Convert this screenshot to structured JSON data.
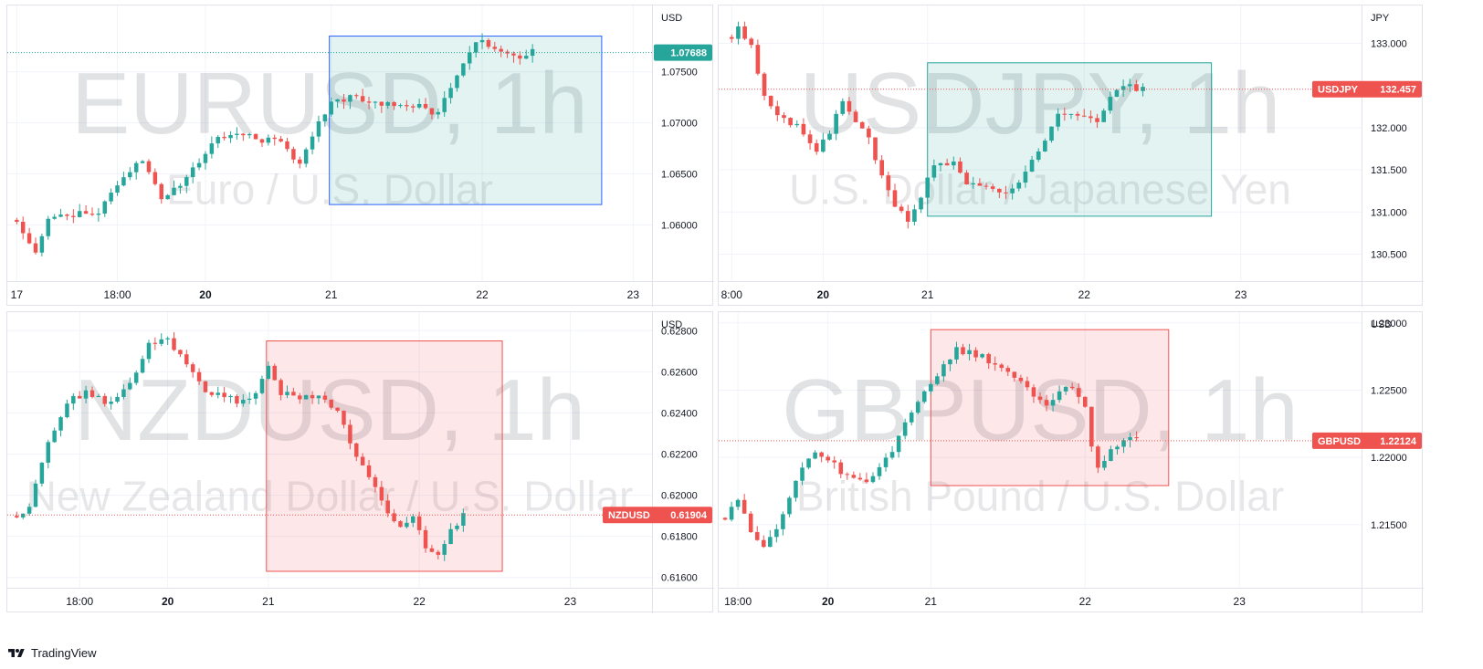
{
  "app": {
    "brand": "TradingView"
  },
  "charts": [
    {
      "id": "eurusd",
      "watermark_symbol": "EURUSD, 1h",
      "watermark_desc": "Euro / U.S. Dollar",
      "currency": "USD",
      "price_label": "1.07688",
      "price_label_symbol": "",
      "price_color": "#26a69a",
      "current_price": 1.07688,
      "y_ticks": [
        "1.06000",
        "1.06500",
        "1.07000",
        "1.07500"
      ],
      "y_tick_values": [
        1.06,
        1.065,
        1.07,
        1.075
      ],
      "ylim": [
        1.0545,
        1.0815
      ],
      "x_ticks": [
        {
          "label": "17",
          "t": 0,
          "bold": false
        },
        {
          "label": "18:00",
          "t": 16,
          "bold": false
        },
        {
          "label": "20",
          "t": 30,
          "bold": true
        },
        {
          "label": "21",
          "t": 50,
          "bold": false
        },
        {
          "label": "22",
          "t": 74,
          "bold": false
        },
        {
          "label": "23",
          "t": 98,
          "bold": false
        }
      ],
      "xlim": [
        -1.5,
        101
      ],
      "box": {
        "x0": 49.7,
        "x1": 93,
        "y0": 1.0785,
        "y1": 1.062,
        "fill": "rgba(38,166,154,0.13)",
        "stroke": "#2962ff"
      },
      "seed": 11,
      "keypoints": [
        [
          0,
          1.0605
        ],
        [
          3,
          1.0575
        ],
        [
          5,
          1.0605
        ],
        [
          9,
          1.0612
        ],
        [
          13,
          1.0612
        ],
        [
          17,
          1.065
        ],
        [
          20,
          1.0665
        ],
        [
          23,
          1.0625
        ],
        [
          26,
          1.064
        ],
        [
          31,
          1.068
        ],
        [
          34,
          1.069
        ],
        [
          38,
          1.0685
        ],
        [
          42,
          1.068
        ],
        [
          45,
          1.066
        ],
        [
          48,
          1.07
        ],
        [
          50,
          1.072
        ],
        [
          53,
          1.0725
        ],
        [
          57,
          1.072
        ],
        [
          61,
          1.072
        ],
        [
          64,
          1.0715
        ],
        [
          67,
          1.071
        ],
        [
          69,
          1.0735
        ],
        [
          71,
          1.0755
        ],
        [
          73,
          1.078
        ],
        [
          75,
          1.0775
        ],
        [
          79,
          1.0765
        ],
        [
          82,
          1.0769
        ]
      ],
      "n_candles": 83,
      "volatility": 0.0008
    },
    {
      "id": "usdjpy",
      "watermark_symbol": "USDJPY, 1h",
      "watermark_desc": "U.S. Dollar / Japanese Yen",
      "currency": "JPY",
      "price_label": "132.457",
      "price_label_symbol": "USDJPY",
      "price_color": "#ef5350",
      "current_price": 132.457,
      "y_ticks": [
        "130.500",
        "131.000",
        "131.500",
        "132.000",
        "133.000"
      ],
      "y_tick_values": [
        130.5,
        131.0,
        131.5,
        132.0,
        133.0
      ],
      "ylim": [
        130.18,
        133.45
      ],
      "x_ticks": [
        {
          "label": "8:00",
          "t": 0,
          "bold": false
        },
        {
          "label": "20",
          "t": 14,
          "bold": true
        },
        {
          "label": "21",
          "t": 30,
          "bold": false
        },
        {
          "label": "22",
          "t": 54,
          "bold": false
        },
        {
          "label": "23",
          "t": 78,
          "bold": false
        }
      ],
      "xlim": [
        -2,
        96.5
      ],
      "box": {
        "x0": 30,
        "x1": 73.5,
        "y0": 132.77,
        "y1": 130.95,
        "fill": "rgba(38,166,154,0.13)",
        "stroke": "#26a69a"
      },
      "seed": 23,
      "keypoints": [
        [
          -1,
          132.95
        ],
        [
          1,
          133.2
        ],
        [
          3,
          132.95
        ],
        [
          5,
          132.4
        ],
        [
          7,
          132.15
        ],
        [
          9,
          132.05
        ],
        [
          11,
          131.95
        ],
        [
          13,
          131.75
        ],
        [
          15,
          131.95
        ],
        [
          17,
          132.35
        ],
        [
          19,
          132.1
        ],
        [
          21,
          131.85
        ],
        [
          23,
          131.45
        ],
        [
          25,
          131.05
        ],
        [
          27,
          130.9
        ],
        [
          29,
          131.2
        ],
        [
          31,
          131.55
        ],
        [
          34,
          131.6
        ],
        [
          36,
          131.35
        ],
        [
          38,
          131.3
        ],
        [
          40,
          131.25
        ],
        [
          42,
          131.2
        ],
        [
          44,
          131.35
        ],
        [
          46,
          131.6
        ],
        [
          48,
          131.85
        ],
        [
          50,
          132.15
        ],
        [
          52,
          132.2
        ],
        [
          54,
          132.15
        ],
        [
          56,
          132.1
        ],
        [
          58,
          132.35
        ],
        [
          60,
          132.5
        ],
        [
          62,
          132.46
        ]
      ],
      "n_candles": 64,
      "volatility": 0.09
    },
    {
      "id": "nzdusd",
      "watermark_symbol": "NZDUSD, 1h",
      "watermark_desc": "New Zealand Dollar / U.S. Dollar",
      "currency": "USD",
      "price_label": "0.61904",
      "price_label_symbol": "NZDUSD",
      "price_color": "#ef5350",
      "current_price": 0.61904,
      "y_ticks": [
        "0.61600",
        "0.61800",
        "0.62000",
        "0.62200",
        "0.62400",
        "0.62600",
        "0.62800"
      ],
      "y_tick_values": [
        0.616,
        0.618,
        0.62,
        0.622,
        0.624,
        0.626,
        0.628
      ],
      "ylim": [
        0.6155,
        0.6289
      ],
      "x_ticks": [
        {
          "label": "18:00",
          "t": 10,
          "bold": false
        },
        {
          "label": "20",
          "t": 24,
          "bold": true
        },
        {
          "label": "21",
          "t": 40,
          "bold": false
        },
        {
          "label": "22",
          "t": 64,
          "bold": false
        },
        {
          "label": "23",
          "t": 88,
          "bold": false
        }
      ],
      "xlim": [
        -1.5,
        101
      ],
      "box": {
        "x0": 39.7,
        "x1": 77.2,
        "y0": 0.6275,
        "y1": 0.6163,
        "fill": "rgba(242,54,69,0.12)",
        "stroke": "#ef5350"
      },
      "seed": 37,
      "keypoints": [
        [
          0,
          0.619
        ],
        [
          2,
          0.6195
        ],
        [
          5,
          0.6225
        ],
        [
          8,
          0.6245
        ],
        [
          11,
          0.625
        ],
        [
          14,
          0.6245
        ],
        [
          17,
          0.625
        ],
        [
          19,
          0.626
        ],
        [
          21,
          0.6275
        ],
        [
          24,
          0.6275
        ],
        [
          27,
          0.6265
        ],
        [
          30,
          0.625
        ],
        [
          33,
          0.6248
        ],
        [
          36,
          0.6245
        ],
        [
          38,
          0.625
        ],
        [
          40,
          0.6262
        ],
        [
          42,
          0.625
        ],
        [
          45,
          0.6248
        ],
        [
          48,
          0.6248
        ],
        [
          51,
          0.624
        ],
        [
          54,
          0.6218
        ],
        [
          57,
          0.6205
        ],
        [
          59,
          0.6192
        ],
        [
          61,
          0.6185
        ],
        [
          63,
          0.619
        ],
        [
          65,
          0.6175
        ],
        [
          67,
          0.617
        ],
        [
          69,
          0.6182
        ],
        [
          71,
          0.619
        ]
      ],
      "n_candles": 72,
      "volatility": 0.00035
    },
    {
      "id": "gbpusd",
      "watermark_symbol": "GBPUSD, 1h",
      "watermark_desc": "British Pound / U.S. Dollar",
      "currency": "USD",
      "price_label": "1.22124",
      "price_label_symbol": "GBPUSD",
      "price_color": "#ef5350",
      "current_price": 1.22124,
      "y_ticks": [
        "1.21500",
        "1.22000",
        "1.22500",
        "1.23000"
      ],
      "y_tick_values": [
        1.215,
        1.22,
        1.225,
        1.23
      ],
      "ylim": [
        1.2103,
        1.2308
      ],
      "x_ticks": [
        {
          "label": "18:00",
          "t": 2,
          "bold": false
        },
        {
          "label": "20",
          "t": 16,
          "bold": true
        },
        {
          "label": "21",
          "t": 32,
          "bold": false
        },
        {
          "label": "22",
          "t": 56,
          "bold": false
        },
        {
          "label": "23",
          "t": 80,
          "bold": false
        }
      ],
      "xlim": [
        -1,
        99
      ],
      "box": {
        "x0": 32,
        "x1": 69,
        "y0": 1.2295,
        "y1": 1.2179,
        "fill": "rgba(242,54,69,0.12)",
        "stroke": "#ef5350"
      },
      "seed": 53,
      "keypoints": [
        [
          0,
          1.2155
        ],
        [
          2,
          1.217
        ],
        [
          4,
          1.2145
        ],
        [
          6,
          1.2135
        ],
        [
          8,
          1.2148
        ],
        [
          10,
          1.217
        ],
        [
          12,
          1.2195
        ],
        [
          14,
          1.2205
        ],
        [
          16,
          1.22
        ],
        [
          18,
          1.219
        ],
        [
          20,
          1.2185
        ],
        [
          22,
          1.218
        ],
        [
          24,
          1.219
        ],
        [
          26,
          1.2205
        ],
        [
          28,
          1.2225
        ],
        [
          30,
          1.224
        ],
        [
          32,
          1.2255
        ],
        [
          34,
          1.227
        ],
        [
          36,
          1.228
        ],
        [
          38,
          1.2278
        ],
        [
          40,
          1.2275
        ],
        [
          42,
          1.2268
        ],
        [
          44,
          1.2262
        ],
        [
          46,
          1.2255
        ],
        [
          48,
          1.2245
        ],
        [
          50,
          1.224
        ],
        [
          52,
          1.225
        ],
        [
          54,
          1.225
        ],
        [
          56,
          1.2235
        ],
        [
          57,
          1.221
        ],
        [
          58,
          1.219
        ],
        [
          60,
          1.2205
        ],
        [
          62,
          1.2215
        ],
        [
          64,
          1.2212
        ]
      ],
      "n_candles": 65,
      "volatility": 0.0006
    }
  ],
  "chart_data": [
    {
      "type": "candlestick",
      "title": "EURUSD, 1h",
      "subtitle": "Euro / U.S. Dollar",
      "ylabel": "USD",
      "last_price": 1.07688,
      "x": [
        "17",
        "18:00",
        "20",
        "21",
        "22",
        "23"
      ],
      "y_ticks": [
        1.06,
        1.065,
        1.07,
        1.075
      ],
      "ylim": [
        1.0545,
        1.0815
      ],
      "approx_series": [
        [
          0,
          1.0605
        ],
        [
          3,
          1.0575
        ],
        [
          9,
          1.0612
        ],
        [
          17,
          1.065
        ],
        [
          23,
          1.0625
        ],
        [
          31,
          1.068
        ],
        [
          45,
          1.066
        ],
        [
          50,
          1.072
        ],
        [
          64,
          1.0715
        ],
        [
          73,
          1.078
        ],
        [
          82,
          1.0769
        ]
      ],
      "highlight_box": {
        "from": "21",
        "to": "22+",
        "price_high": 1.0785,
        "price_low": 1.062
      }
    },
    {
      "type": "candlestick",
      "title": "USDJPY, 1h",
      "subtitle": "U.S. Dollar / Japanese Yen",
      "ylabel": "JPY",
      "last_price": 132.457,
      "x": [
        "8:00",
        "20",
        "21",
        "22",
        "23"
      ],
      "y_ticks": [
        130.5,
        131.0,
        131.5,
        132.0,
        133.0
      ],
      "ylim": [
        130.18,
        133.45
      ],
      "approx_series": [
        [
          0,
          133.0
        ],
        [
          5,
          132.4
        ],
        [
          13,
          131.75
        ],
        [
          17,
          132.35
        ],
        [
          27,
          130.9
        ],
        [
          34,
          131.6
        ],
        [
          42,
          131.2
        ],
        [
          50,
          132.15
        ],
        [
          60,
          132.5
        ],
        [
          62,
          132.46
        ]
      ],
      "highlight_box": {
        "price_high": 132.77,
        "price_low": 130.95
      }
    },
    {
      "type": "candlestick",
      "title": "NZDUSD, 1h",
      "subtitle": "New Zealand Dollar / U.S. Dollar",
      "ylabel": "USD",
      "last_price": 0.61904,
      "x": [
        "18:00",
        "20",
        "21",
        "22",
        "23"
      ],
      "y_ticks": [
        0.616,
        0.618,
        0.62,
        0.622,
        0.624,
        0.626,
        0.628
      ],
      "ylim": [
        0.6155,
        0.6289
      ],
      "approx_series": [
        [
          0,
          0.619
        ],
        [
          8,
          0.6245
        ],
        [
          21,
          0.6275
        ],
        [
          40,
          0.6262
        ],
        [
          51,
          0.624
        ],
        [
          59,
          0.6192
        ],
        [
          67,
          0.617
        ],
        [
          71,
          0.619
        ]
      ],
      "highlight_box": {
        "price_high": 0.6275,
        "price_low": 0.6163
      }
    },
    {
      "type": "candlestick",
      "title": "GBPUSD, 1h",
      "subtitle": "British Pound / U.S. Dollar",
      "ylabel": "USD",
      "last_price": 1.22124,
      "x": [
        "18:00",
        "20",
        "21",
        "22",
        "23"
      ],
      "y_ticks": [
        1.215,
        1.22,
        1.225,
        1.23
      ],
      "ylim": [
        1.2103,
        1.2308
      ],
      "approx_series": [
        [
          0,
          1.2155
        ],
        [
          6,
          1.2135
        ],
        [
          14,
          1.2205
        ],
        [
          22,
          1.218
        ],
        [
          36,
          1.228
        ],
        [
          48,
          1.2245
        ],
        [
          58,
          1.219
        ],
        [
          64,
          1.2212
        ]
      ],
      "highlight_box": {
        "price_high": 1.2295,
        "price_low": 1.2179
      }
    }
  ]
}
